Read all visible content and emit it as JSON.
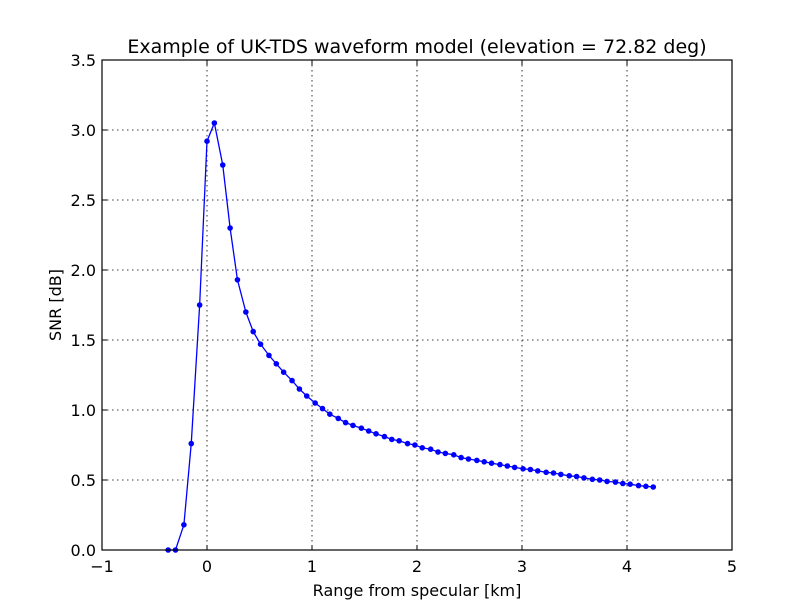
{
  "chart_data": {
    "type": "line",
    "title": "Example of UK-TDS waveform model (elevation = 72.82 deg)",
    "xlabel": "Range from specular [km]",
    "ylabel": "SNR [dB]",
    "xlim": [
      -1,
      5
    ],
    "ylim": [
      0,
      3.5
    ],
    "xticks": [
      "−1",
      "0",
      "1",
      "2",
      "3",
      "4",
      "5"
    ],
    "yticks": [
      "0.0",
      "0.5",
      "1.0",
      "1.5",
      "2.0",
      "2.5",
      "3.0",
      "3.5"
    ],
    "grid": true,
    "line_color": "#0000ff",
    "series": [
      {
        "x": [
          -0.37,
          -0.3,
          -0.22,
          -0.15,
          -0.07,
          0.0,
          0.07,
          0.15,
          0.22,
          0.29,
          0.37,
          0.44,
          0.51,
          0.59,
          0.66,
          0.73,
          0.81,
          0.88,
          0.95,
          1.03,
          1.1,
          1.17,
          1.25,
          1.32,
          1.39,
          1.47,
          1.54,
          1.61,
          1.69,
          1.76,
          1.83,
          1.91,
          1.98,
          2.05,
          2.13,
          2.2,
          2.27,
          2.35,
          2.42,
          2.49,
          2.57,
          2.64,
          2.71,
          2.79,
          2.86,
          2.93,
          3.01,
          3.08,
          3.15,
          3.23,
          3.3,
          3.37,
          3.45,
          3.52,
          3.59,
          3.67,
          3.74,
          3.81,
          3.89,
          3.96,
          4.03,
          4.11,
          4.18,
          4.25
        ],
        "y": [
          0.0,
          0.0,
          0.18,
          0.76,
          1.75,
          2.92,
          3.05,
          2.75,
          2.3,
          1.93,
          1.7,
          1.56,
          1.47,
          1.39,
          1.33,
          1.27,
          1.21,
          1.15,
          1.1,
          1.05,
          1.01,
          0.97,
          0.94,
          0.91,
          0.89,
          0.87,
          0.85,
          0.83,
          0.81,
          0.79,
          0.78,
          0.76,
          0.75,
          0.73,
          0.72,
          0.7,
          0.69,
          0.68,
          0.66,
          0.65,
          0.64,
          0.63,
          0.62,
          0.61,
          0.6,
          0.59,
          0.58,
          0.575,
          0.565,
          0.555,
          0.55,
          0.54,
          0.53,
          0.525,
          0.515,
          0.505,
          0.5,
          0.49,
          0.485,
          0.475,
          0.47,
          0.46,
          0.455,
          0.45
        ]
      }
    ]
  }
}
